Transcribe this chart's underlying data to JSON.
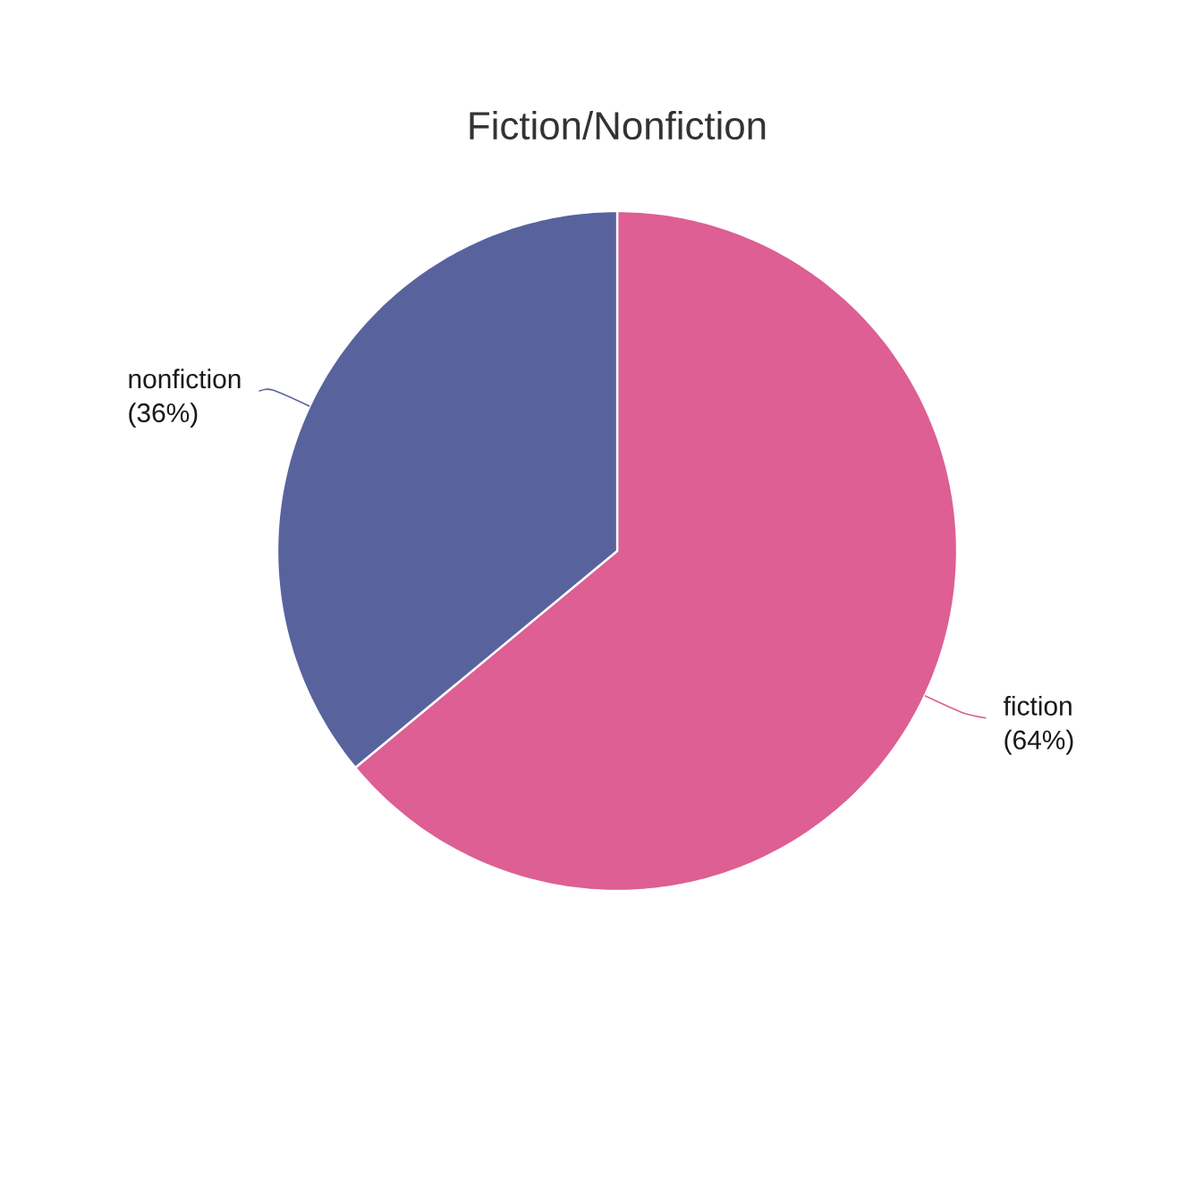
{
  "chart_data": {
    "type": "pie",
    "title": "Fiction/Nonfiction",
    "categories": [
      "fiction",
      "nonfiction"
    ],
    "values": [
      64,
      36
    ],
    "colors": [
      "#dd5f93",
      "#58639e"
    ],
    "value_labels": [
      "(64%)",
      "(36%)"
    ]
  }
}
